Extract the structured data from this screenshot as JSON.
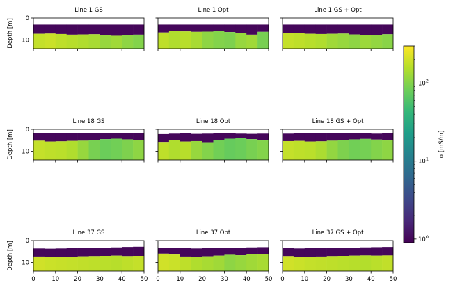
{
  "figure": {
    "colorbar": {
      "label": "σ [mS/m]",
      "scale": "log",
      "range": [
        0.9,
        300
      ],
      "ticks": [
        {
          "value": 1,
          "mantissa": "10",
          "exp": "0"
        },
        {
          "value": 10,
          "mantissa": "10",
          "exp": "1"
        },
        {
          "value": 100,
          "mantissa": "10",
          "exp": "2"
        }
      ],
      "colormap": "viridis"
    }
  },
  "chart_data": {
    "type": "heatmap",
    "layout": "3x3 panel grid with shared colorbar",
    "xlim": [
      0,
      50
    ],
    "ylim": [
      14,
      0
    ],
    "x_ticks": [
      0,
      10,
      20,
      30,
      40,
      50
    ],
    "y_ticks": [
      0,
      10
    ],
    "ylabel": "Depth [m]",
    "panels": [
      {
        "title": "Line 1 GS",
        "ylabel": "Depth [m]",
        "show_x_ticklabels": false,
        "surface_depth": [
          3,
          3,
          3,
          3,
          3,
          3,
          3,
          3,
          3,
          3
        ],
        "layer_boundary": [
          7.2,
          7.1,
          7.3,
          7.6,
          7.5,
          7.4,
          7.8,
          8.1,
          7.9,
          7.6
        ],
        "top_layer_sigma": 1,
        "bottom_layer_sigma": [
          180,
          190,
          170,
          160,
          150,
          140,
          120,
          130,
          110,
          100
        ]
      },
      {
        "title": "Line 1 Opt",
        "ylabel": "",
        "show_x_ticklabels": false,
        "surface_depth": [
          3,
          3,
          3,
          3,
          3,
          3,
          3,
          3,
          3,
          3
        ],
        "layer_boundary": [
          6.6,
          5.9,
          6.1,
          6.3,
          6.2,
          6.0,
          6.4,
          7.0,
          7.6,
          6.3
        ],
        "top_layer_sigma": 1,
        "bottom_layer_sigma": [
          170,
          150,
          160,
          140,
          110,
          100,
          95,
          120,
          130,
          90
        ]
      },
      {
        "title": "Line 1 GS + Opt",
        "ylabel": "",
        "show_x_ticklabels": false,
        "surface_depth": [
          3,
          3,
          3,
          3,
          3,
          3,
          3,
          3,
          3,
          3
        ],
        "layer_boundary": [
          7.0,
          6.9,
          7.2,
          7.3,
          7.2,
          7.1,
          7.5,
          7.8,
          7.9,
          7.4
        ],
        "top_layer_sigma": 1,
        "bottom_layer_sigma": [
          180,
          170,
          160,
          150,
          130,
          120,
          110,
          125,
          115,
          105
        ]
      },
      {
        "title": "Line 18 GS",
        "ylabel": "Depth [m]",
        "show_x_ticklabels": false,
        "surface_depth": [
          1.8,
          1.9,
          1.8,
          1.7,
          1.8,
          1.9,
          1.8,
          1.8,
          1.9,
          1.8
        ],
        "layer_boundary": [
          5.2,
          5.6,
          5.5,
          5.3,
          5.2,
          4.8,
          4.5,
          4.3,
          4.6,
          5.0
        ],
        "top_layer_sigma": 1,
        "bottom_layer_sigma": [
          180,
          170,
          165,
          150,
          120,
          90,
          80,
          85,
          95,
          110
        ]
      },
      {
        "title": "Line 18 Opt",
        "ylabel": "",
        "show_x_ticklabels": false,
        "surface_depth": [
          2.2,
          2.0,
          1.9,
          2.1,
          2.0,
          1.9,
          1.8,
          2.0,
          2.1,
          2.0
        ],
        "layer_boundary": [
          5.8,
          4.9,
          5.6,
          5.4,
          5.9,
          4.8,
          4.3,
          3.9,
          4.5,
          5.1
        ],
        "top_layer_sigma": 1,
        "bottom_layer_sigma": [
          170,
          150,
          160,
          120,
          100,
          85,
          75,
          80,
          90,
          100
        ]
      },
      {
        "title": "Line 18 GS + Opt",
        "ylabel": "",
        "show_x_ticklabels": false,
        "surface_depth": [
          2.0,
          1.9,
          1.9,
          1.8,
          1.9,
          1.9,
          1.8,
          1.9,
          2.0,
          1.9
        ],
        "layer_boundary": [
          5.4,
          5.3,
          5.6,
          5.5,
          5.2,
          4.9,
          4.6,
          4.4,
          4.7,
          5.1
        ],
        "top_layer_sigma": 1,
        "bottom_layer_sigma": [
          180,
          170,
          165,
          145,
          115,
          95,
          85,
          88,
          100,
          110
        ]
      },
      {
        "title": "Line 37 GS",
        "ylabel": "Depth [m]",
        "show_x_ticklabels": true,
        "surface_depth": [
          3.6,
          3.7,
          3.6,
          3.5,
          3.4,
          3.3,
          3.2,
          3.1,
          2.9,
          2.8
        ],
        "layer_boundary": [
          7.3,
          7.6,
          7.5,
          7.4,
          7.2,
          7.1,
          7.0,
          6.9,
          7.1,
          7.0
        ],
        "top_layer_sigma": 1,
        "bottom_layer_sigma": [
          200,
          190,
          185,
          180,
          175,
          170,
          165,
          160,
          170,
          180
        ]
      },
      {
        "title": "Line 37 Opt",
        "ylabel": "",
        "show_x_ticklabels": true,
        "surface_depth": [
          3.4,
          3.5,
          3.4,
          3.6,
          3.5,
          3.4,
          3.3,
          3.2,
          3.1,
          3.0
        ],
        "layer_boundary": [
          6.0,
          6.4,
          7.3,
          7.6,
          7.2,
          6.9,
          6.5,
          6.7,
          6.3,
          6.1
        ],
        "top_layer_sigma": 1,
        "bottom_layer_sigma": [
          200,
          190,
          170,
          150,
          140,
          130,
          110,
          120,
          130,
          140
        ]
      },
      {
        "title": "Line 37 GS + Opt",
        "ylabel": "",
        "show_x_ticklabels": true,
        "surface_depth": [
          3.5,
          3.6,
          3.5,
          3.5,
          3.4,
          3.3,
          3.2,
          3.1,
          3.0,
          2.9
        ],
        "layer_boundary": [
          7.1,
          7.4,
          7.4,
          7.3,
          7.1,
          7.0,
          6.9,
          6.8,
          6.9,
          6.8
        ],
        "top_layer_sigma": 1,
        "bottom_layer_sigma": [
          200,
          190,
          180,
          175,
          170,
          165,
          160,
          155,
          165,
          175
        ]
      }
    ]
  }
}
